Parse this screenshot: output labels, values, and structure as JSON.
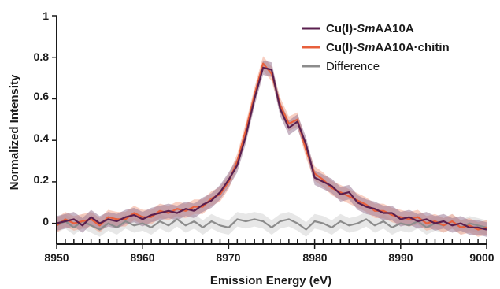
{
  "chart_data": {
    "type": "line",
    "xlabel": "Emission Energy (eV)",
    "ylabel": "Normalized Intensity",
    "xlim": [
      8950,
      9000
    ],
    "ylim": [
      -0.1,
      1.0
    ],
    "xticks": [
      "8950",
      "8960",
      "8970",
      "8980",
      "8990",
      "9000"
    ],
    "yticks": [
      "0",
      "0.2",
      "0.4",
      "0.6",
      "0.8",
      "1"
    ],
    "legend_position": "top-right",
    "grid": false,
    "series": [
      {
        "name_prefix": "Cu(I)-",
        "name_italic": "Sm",
        "name_suffix": "AA10A",
        "color": "#5a1f4e",
        "band_color": "#9b7a95",
        "points": [
          [
            8950,
            0.0
          ],
          [
            8951,
            0.01
          ],
          [
            8952,
            0.02
          ],
          [
            8953,
            -0.01
          ],
          [
            8954,
            0.03
          ],
          [
            8955,
            0.0
          ],
          [
            8956,
            0.02
          ],
          [
            8957,
            0.01
          ],
          [
            8958,
            0.03
          ],
          [
            8959,
            0.04
          ],
          [
            8960,
            0.02
          ],
          [
            8961,
            0.04
          ],
          [
            8962,
            0.05
          ],
          [
            8963,
            0.06
          ],
          [
            8964,
            0.05
          ],
          [
            8965,
            0.07
          ],
          [
            8966,
            0.06
          ],
          [
            8967,
            0.09
          ],
          [
            8968,
            0.11
          ],
          [
            8969,
            0.15
          ],
          [
            8970,
            0.21
          ],
          [
            8971,
            0.28
          ],
          [
            8972,
            0.42
          ],
          [
            8973,
            0.6
          ],
          [
            8974,
            0.75
          ],
          [
            8975,
            0.74
          ],
          [
            8976,
            0.55
          ],
          [
            8977,
            0.46
          ],
          [
            8978,
            0.49
          ],
          [
            8979,
            0.38
          ],
          [
            8980,
            0.22
          ],
          [
            8981,
            0.2
          ],
          [
            8982,
            0.18
          ],
          [
            8983,
            0.14
          ],
          [
            8984,
            0.15
          ],
          [
            8985,
            0.1
          ],
          [
            8986,
            0.08
          ],
          [
            8987,
            0.07
          ],
          [
            8988,
            0.05
          ],
          [
            8989,
            0.05
          ],
          [
            8990,
            0.02
          ],
          [
            8991,
            0.03
          ],
          [
            8992,
            0.01
          ],
          [
            8993,
            0.02
          ],
          [
            8994,
            0.0
          ],
          [
            8995,
            0.01
          ],
          [
            8996,
            -0.01
          ],
          [
            8997,
            0.0
          ],
          [
            8998,
            -0.02
          ],
          [
            8999,
            -0.02
          ],
          [
            9000,
            -0.03
          ]
        ]
      },
      {
        "name_prefix": "Cu(I)-",
        "name_italic": "Sm",
        "name_suffix": "AA10A·chitin",
        "color": "#e8603c",
        "band_color": "#f3a78f",
        "points": [
          [
            8950,
            -0.01
          ],
          [
            8951,
            0.02
          ],
          [
            8952,
            0.0
          ],
          [
            8953,
            0.01
          ],
          [
            8954,
            0.02
          ],
          [
            8955,
            -0.01
          ],
          [
            8956,
            0.03
          ],
          [
            8957,
            0.02
          ],
          [
            8958,
            0.02
          ],
          [
            8959,
            0.05
          ],
          [
            8960,
            0.03
          ],
          [
            8961,
            0.03
          ],
          [
            8962,
            0.06
          ],
          [
            8963,
            0.05
          ],
          [
            8964,
            0.07
          ],
          [
            8965,
            0.06
          ],
          [
            8966,
            0.08
          ],
          [
            8967,
            0.08
          ],
          [
            8968,
            0.12
          ],
          [
            8969,
            0.14
          ],
          [
            8970,
            0.2
          ],
          [
            8971,
            0.3
          ],
          [
            8972,
            0.45
          ],
          [
            8973,
            0.62
          ],
          [
            8974,
            0.77
          ],
          [
            8975,
            0.72
          ],
          [
            8976,
            0.57
          ],
          [
            8977,
            0.48
          ],
          [
            8978,
            0.5
          ],
          [
            8979,
            0.35
          ],
          [
            8980,
            0.24
          ],
          [
            8981,
            0.21
          ],
          [
            8982,
            0.17
          ],
          [
            8983,
            0.15
          ],
          [
            8984,
            0.13
          ],
          [
            8985,
            0.11
          ],
          [
            8986,
            0.09
          ],
          [
            8987,
            0.06
          ],
          [
            8988,
            0.06
          ],
          [
            8989,
            0.04
          ],
          [
            8990,
            0.03
          ],
          [
            8991,
            0.02
          ],
          [
            8992,
            0.03
          ],
          [
            8993,
            0.0
          ],
          [
            8994,
            0.01
          ],
          [
            8995,
            -0.01
          ],
          [
            8996,
            0.01
          ],
          [
            8997,
            -0.02
          ],
          [
            8998,
            -0.01
          ],
          [
            8999,
            -0.03
          ],
          [
            9000,
            -0.02
          ]
        ]
      },
      {
        "name_prefix": "Difference",
        "name_italic": "",
        "name_suffix": "",
        "color": "#8c8c8c",
        "band_color": "#d4d4d4",
        "points": [
          [
            8950,
            -0.01
          ],
          [
            8951,
            0.01
          ],
          [
            8952,
            -0.02
          ],
          [
            8953,
            0.01
          ],
          [
            8954,
            -0.01
          ],
          [
            8955,
            -0.03
          ],
          [
            8956,
            0.0
          ],
          [
            8957,
            -0.02
          ],
          [
            8958,
            0.01
          ],
          [
            8959,
            -0.01
          ],
          [
            8960,
            0.0
          ],
          [
            8961,
            -0.02
          ],
          [
            8962,
            0.01
          ],
          [
            8963,
            -0.01
          ],
          [
            8964,
            0.02
          ],
          [
            8965,
            -0.01
          ],
          [
            8966,
            0.01
          ],
          [
            8967,
            -0.02
          ],
          [
            8968,
            0.01
          ],
          [
            8969,
            -0.01
          ],
          [
            8970,
            -0.02
          ],
          [
            8971,
            0.02
          ],
          [
            8972,
            0.01
          ],
          [
            8973,
            0.02
          ],
          [
            8974,
            0.01
          ],
          [
            8975,
            -0.02
          ],
          [
            8976,
            0.01
          ],
          [
            8977,
            0.02
          ],
          [
            8978,
            0.0
          ],
          [
            8979,
            -0.03
          ],
          [
            8980,
            0.01
          ],
          [
            8981,
            0.0
          ],
          [
            8982,
            -0.02
          ],
          [
            8983,
            0.01
          ],
          [
            8984,
            -0.01
          ],
          [
            8985,
            0.0
          ],
          [
            8986,
            0.02
          ],
          [
            8987,
            -0.01
          ],
          [
            8988,
            0.01
          ],
          [
            8989,
            -0.02
          ],
          [
            8990,
            0.0
          ],
          [
            8991,
            -0.01
          ],
          [
            8992,
            0.01
          ],
          [
            8993,
            -0.02
          ],
          [
            8994,
            0.0
          ],
          [
            8995,
            -0.01
          ],
          [
            8996,
            0.01
          ],
          [
            8997,
            -0.02
          ],
          [
            8998,
            0.0
          ],
          [
            8999,
            -0.01
          ],
          [
            9000,
            -0.02
          ]
        ]
      }
    ]
  }
}
